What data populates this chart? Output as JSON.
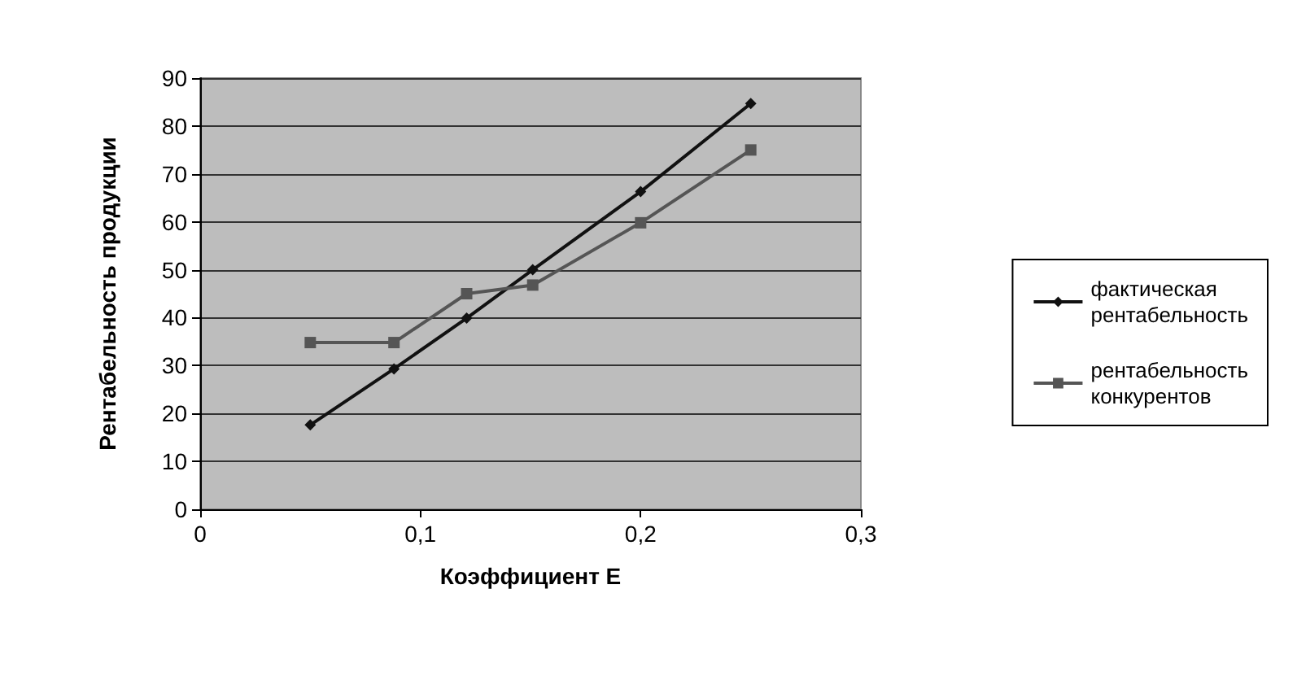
{
  "chart_data": {
    "type": "line",
    "xlabel": "Коэффициент Е",
    "ylabel": "Рентабельность продукции",
    "xlim": [
      0,
      0.3
    ],
    "xticks": [
      {
        "value": 0,
        "label": "0"
      },
      {
        "value": 0.1,
        "label": "0,1"
      },
      {
        "value": 0.2,
        "label": "0,2"
      },
      {
        "value": 0.3,
        "label": "0,3"
      }
    ],
    "ylim": [
      0,
      90
    ],
    "yticks": [
      0,
      10,
      20,
      30,
      40,
      50,
      60,
      70,
      80,
      90
    ],
    "grid": "y",
    "legend": "right",
    "series": [
      {
        "name": "фактическая рентабельность",
        "color": "#111111",
        "marker": "diamond",
        "x": [
          0.05,
          0.088,
          0.121,
          0.151,
          0.2,
          0.25
        ],
        "values": [
          17.6,
          29.3,
          39.9,
          50,
          66.3,
          84.7
        ]
      },
      {
        "name": "рентабельность конкурентов",
        "color": "#555555",
        "marker": "square",
        "x": [
          0.05,
          0.088,
          0.121,
          0.151,
          0.2,
          0.25
        ],
        "values": [
          34.8,
          34.8,
          45,
          46.8,
          59.8,
          75
        ]
      }
    ]
  }
}
